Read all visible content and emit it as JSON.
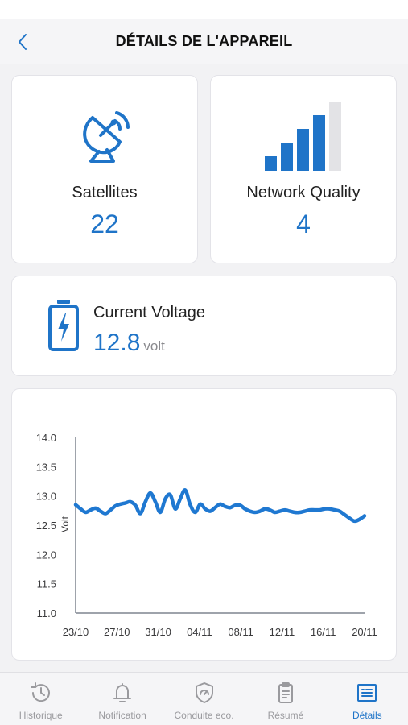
{
  "header": {
    "title": "DÉTAILS DE L'APPAREIL",
    "back_icon": "chevron-left-icon"
  },
  "satellites": {
    "label": "Satellites",
    "value": "22",
    "icon": "satellite-dish-icon"
  },
  "network": {
    "label": "Network Quality",
    "value": "4",
    "bars_filled": 4,
    "bars_total": 5,
    "icon": "signal-bars-icon"
  },
  "voltage": {
    "label": "Current Voltage",
    "value": "12.8",
    "unit": "volt",
    "icon": "battery-charging-icon"
  },
  "chart_data": {
    "type": "line",
    "title": "",
    "xlabel": "",
    "ylabel": "Volt",
    "ylim": [
      11.0,
      14.0
    ],
    "xlim": [
      0,
      29
    ],
    "yticks": [
      "11.0",
      "11.5",
      "12.0",
      "12.5",
      "13.0",
      "13.5",
      "14.0"
    ],
    "xticks": [
      "23/10",
      "27/10",
      "31/10",
      "04/11",
      "08/11",
      "12/11",
      "16/11",
      "20/11"
    ],
    "grid": false,
    "legend": "none",
    "x": [
      0,
      0.5,
      1,
      1.5,
      2,
      2.5,
      3,
      3.5,
      4,
      4.5,
      5,
      5.5,
      6,
      6.5,
      7,
      7.5,
      8,
      8.5,
      9,
      9.5,
      10,
      10.5,
      11,
      11.5,
      12,
      12.5,
      13,
      13.5,
      14,
      14.5,
      15,
      15.5,
      16,
      16.5,
      17,
      17.5,
      18,
      18.5,
      19,
      19.5,
      20,
      20.5,
      21,
      21.5,
      22,
      22.5,
      23,
      23.5,
      24,
      24.5,
      25,
      25.5,
      26,
      26.5,
      27,
      27.5,
      28,
      28.5,
      29
    ],
    "series": [
      {
        "values": [
          12.85,
          12.78,
          12.72,
          12.76,
          12.79,
          12.74,
          12.7,
          12.76,
          12.83,
          12.86,
          12.88,
          12.9,
          12.84,
          12.7,
          12.9,
          13.05,
          12.9,
          12.72,
          12.95,
          13.02,
          12.78,
          12.95,
          13.1,
          12.85,
          12.72,
          12.86,
          12.78,
          12.74,
          12.8,
          12.86,
          12.82,
          12.8,
          12.84,
          12.84,
          12.78,
          12.74,
          12.72,
          12.74,
          12.78,
          12.76,
          12.72,
          12.74,
          12.76,
          12.74,
          12.72,
          12.72,
          12.74,
          12.76,
          12.76,
          12.76,
          12.78,
          12.78,
          12.76,
          12.74,
          12.68,
          12.62,
          12.57,
          12.6,
          12.66
        ],
        "color": "#1f78d1"
      }
    ]
  },
  "tabs": [
    {
      "label": "Historique",
      "icon": "history-icon",
      "active": false
    },
    {
      "label": "Notification",
      "icon": "bell-icon",
      "active": false
    },
    {
      "label": "Conduite eco.",
      "icon": "eco-shield-icon",
      "active": false
    },
    {
      "label": "Résumé",
      "icon": "clipboard-icon",
      "active": false
    },
    {
      "label": "Détails",
      "icon": "details-icon",
      "active": true
    }
  ],
  "colors": {
    "accent": "#1f74c8",
    "inactive": "#9a9a9e",
    "bar_empty": "#e3e3e6"
  }
}
